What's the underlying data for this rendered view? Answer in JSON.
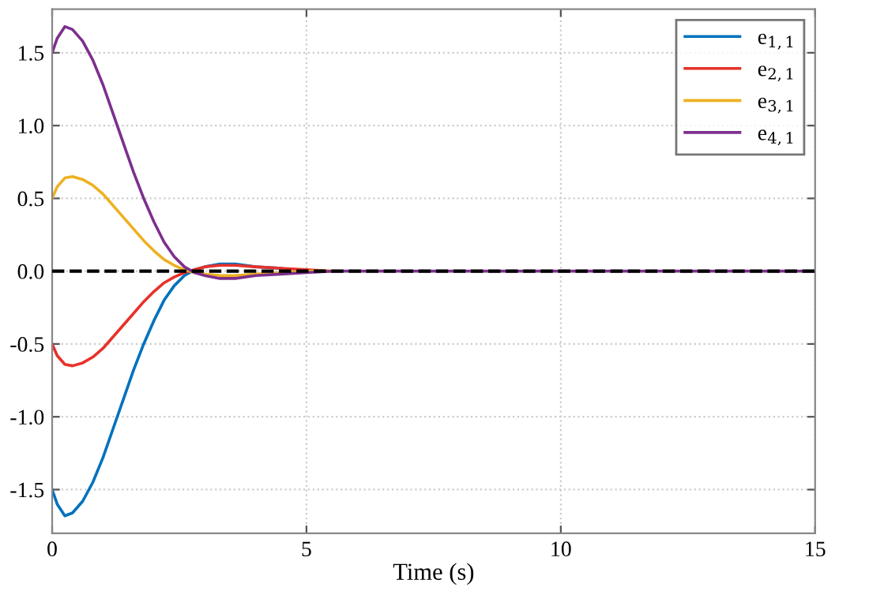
{
  "chart_data": {
    "type": "line",
    "xlabel": "Time (s)",
    "x": [
      0,
      0.1,
      0.25,
      0.4,
      0.6,
      0.8,
      1.0,
      1.2,
      1.4,
      1.6,
      1.8,
      2.0,
      2.2,
      2.4,
      2.6,
      2.8,
      3.0,
      3.3,
      3.6,
      4.0,
      4.5,
      5.0,
      5.5,
      6.0,
      15
    ],
    "series": [
      {
        "name": "e$_{1,1}$",
        "color": "#0072bd",
        "values": [
          -1.5,
          -1.6,
          -1.68,
          -1.66,
          -1.58,
          -1.45,
          -1.28,
          -1.08,
          -0.88,
          -0.68,
          -0.5,
          -0.34,
          -0.2,
          -0.1,
          -0.03,
          0.01,
          0.03,
          0.05,
          0.05,
          0.03,
          0.02,
          null,
          null,
          null,
          null
        ]
      },
      {
        "name": "e$_{2,1}$",
        "color": "#e8312a",
        "values": [
          -0.5,
          -0.58,
          -0.64,
          -0.65,
          -0.63,
          -0.59,
          -0.53,
          -0.45,
          -0.37,
          -0.29,
          -0.21,
          -0.14,
          -0.08,
          -0.04,
          -0.01,
          0.01,
          0.03,
          0.04,
          0.04,
          0.03,
          0.02,
          0.01,
          0.0,
          null,
          null
        ]
      },
      {
        "name": "e$_{3,1}$",
        "color": "#edb120",
        "values": [
          0.5,
          0.58,
          0.64,
          0.65,
          0.63,
          0.59,
          0.53,
          0.45,
          0.37,
          0.29,
          0.21,
          0.14,
          0.08,
          0.04,
          0.01,
          -0.01,
          -0.02,
          -0.03,
          -0.03,
          -0.02,
          -0.01,
          0.0,
          0.0,
          null,
          null
        ]
      },
      {
        "name": "e$_{4,1}$",
        "color": "#7e2f8e",
        "values": [
          1.5,
          1.6,
          1.68,
          1.66,
          1.58,
          1.45,
          1.28,
          1.08,
          0.88,
          0.68,
          0.5,
          0.34,
          0.2,
          0.1,
          0.03,
          -0.01,
          -0.03,
          -0.05,
          -0.05,
          -0.03,
          -0.02,
          -0.01,
          0.0,
          0,
          0
        ]
      }
    ],
    "xlim": [
      0,
      15
    ],
    "xticks": [
      0,
      5,
      10,
      15
    ],
    "ylim": [
      -1.8,
      1.8
    ],
    "yticks": [
      {
        "value": -1.5,
        "label": "-1.5"
      },
      {
        "value": -1.0,
        "label": "-1.0"
      },
      {
        "value": -0.5,
        "label": "-0.5"
      },
      {
        "value": 0,
        "label": "0.0"
      },
      {
        "value": 0.5,
        "label": "0.5"
      },
      {
        "value": 1.0,
        "label": "1.0"
      },
      {
        "value": 1.5,
        "label": "1.5"
      }
    ],
    "ref_lines": [
      {
        "axis": "y",
        "value": 0,
        "color": "#000000",
        "line_style": "dashed"
      }
    ],
    "grid": true,
    "legend": "top right",
    "marker": "none",
    "line_style": "solid"
  }
}
